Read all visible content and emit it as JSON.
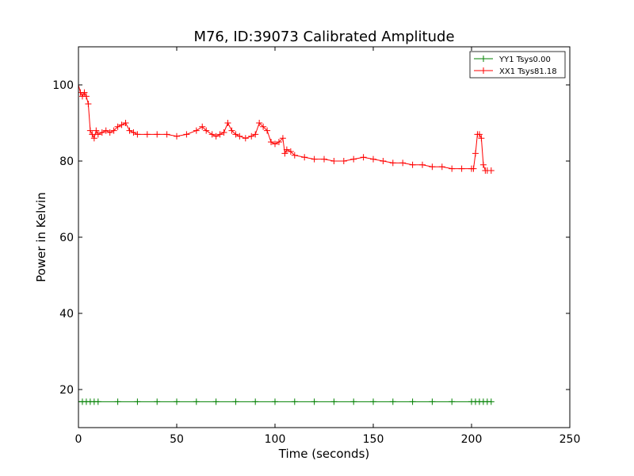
{
  "chart_data": {
    "type": "line",
    "title": "M76, ID:39073 Calibrated Amplitude",
    "xlabel": "Time (seconds)",
    "ylabel": "Power in Kelvin",
    "xlim": [
      0,
      250
    ],
    "ylim": [
      10,
      110
    ],
    "xticks": [
      0,
      50,
      100,
      150,
      200,
      250
    ],
    "yticks": [
      20,
      40,
      60,
      80,
      100
    ],
    "grid": false,
    "legend_position": "top-right",
    "marker": "+",
    "series": [
      {
        "name": "YY1 Tsys0.00",
        "color": "#008000",
        "x": [
          0,
          2,
          4,
          6,
          8,
          10,
          20,
          30,
          40,
          50,
          60,
          70,
          80,
          90,
          100,
          110,
          120,
          130,
          140,
          150,
          160,
          170,
          180,
          190,
          200,
          202,
          204,
          206,
          208,
          210
        ],
        "y": [
          16.8,
          16.8,
          16.8,
          16.8,
          16.8,
          16.8,
          16.8,
          16.8,
          16.8,
          16.8,
          16.8,
          16.8,
          16.8,
          16.8,
          16.8,
          16.8,
          16.8,
          16.8,
          16.8,
          16.8,
          16.8,
          16.8,
          16.8,
          16.8,
          16.8,
          16.8,
          16.8,
          16.8,
          16.8,
          16.8
        ]
      },
      {
        "name": "XX1 Tsys81.18",
        "color": "#ff0000",
        "x": [
          0,
          1,
          2,
          3,
          4,
          5,
          6,
          7,
          8,
          9,
          10,
          12,
          14,
          16,
          18,
          20,
          22,
          24,
          26,
          28,
          30,
          35,
          40,
          45,
          50,
          55,
          60,
          63,
          65,
          68,
          70,
          72,
          74,
          76,
          78,
          80,
          82,
          85,
          88,
          90,
          92,
          94,
          96,
          98,
          100,
          102,
          104,
          105,
          106,
          108,
          110,
          115,
          120,
          125,
          130,
          135,
          140,
          145,
          150,
          155,
          160,
          165,
          170,
          175,
          180,
          185,
          190,
          195,
          200,
          201,
          202,
          203,
          204,
          205,
          206,
          207,
          208,
          210
        ],
        "y": [
          100,
          98,
          97,
          98,
          97,
          95,
          88,
          87,
          86,
          88,
          87,
          87.5,
          88,
          87.5,
          88,
          89,
          89.5,
          90,
          88,
          87.5,
          87,
          87,
          87,
          87,
          86.5,
          87,
          88,
          89,
          88,
          87,
          86.5,
          87,
          87.5,
          90,
          88,
          87,
          86.5,
          86,
          86.5,
          87,
          90,
          89,
          88,
          85,
          84.5,
          85,
          86,
          82,
          83,
          82.5,
          81.5,
          81,
          80.5,
          80.5,
          80,
          80,
          80.5,
          81,
          80.5,
          80,
          79.5,
          79.5,
          79,
          79,
          78.5,
          78.5,
          78,
          78,
          78,
          78,
          82,
          87,
          87,
          86,
          79,
          77.5,
          77.5,
          77.5
        ]
      }
    ]
  }
}
